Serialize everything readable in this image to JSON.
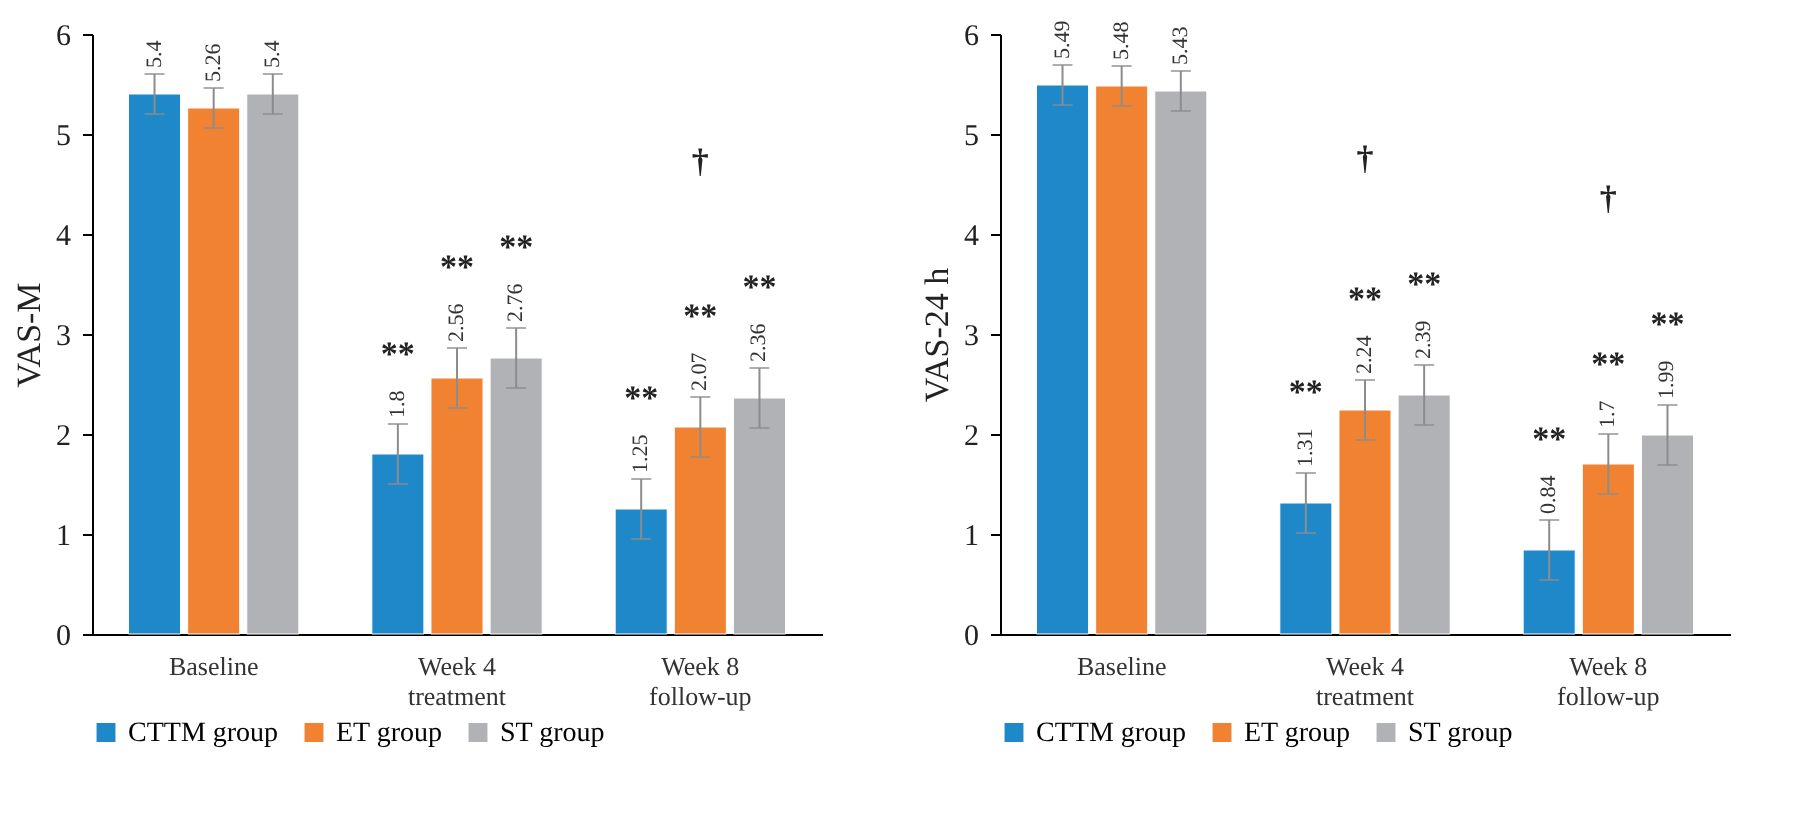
{
  "chart_data": [
    {
      "type": "bar",
      "ylabel": "VAS-M",
      "categories": [
        "Baseline",
        "Week 4 treatment",
        "Week 8 follow-up"
      ],
      "ylim": [
        0,
        6
      ],
      "yticks": [
        0,
        1,
        2,
        3,
        4,
        5,
        6
      ],
      "legend": "bottom",
      "data_labels": true,
      "series": [
        {
          "name": "CTTM group",
          "color": "#1f88c9",
          "values": [
            5.4,
            1.8,
            1.25
          ],
          "errors": [
            0.2,
            0.3,
            0.3
          ]
        },
        {
          "name": "ET group",
          "color": "#f08231",
          "values": [
            5.26,
            2.56,
            2.07
          ],
          "errors": [
            0.2,
            0.3,
            0.3
          ]
        },
        {
          "name": "ST group",
          "color": "#b1b2b6",
          "values": [
            5.4,
            2.76,
            2.36
          ],
          "errors": [
            0.2,
            0.3,
            0.3
          ]
        }
      ],
      "annotations": [
        "**",
        "**",
        "**",
        "**",
        "**",
        "**",
        "†"
      ]
    },
    {
      "type": "bar",
      "ylabel": "VAS-24 h",
      "categories": [
        "Baseline",
        "Week 4 treatment",
        "Week 8 follow-up"
      ],
      "ylim": [
        0,
        6
      ],
      "yticks": [
        0,
        1,
        2,
        3,
        4,
        5,
        6
      ],
      "legend": "bottom",
      "data_labels": true,
      "series": [
        {
          "name": "CTTM group",
          "color": "#1f88c9",
          "values": [
            5.49,
            1.31,
            0.84
          ],
          "errors": [
            0.2,
            0.3,
            0.3
          ]
        },
        {
          "name": "ET group",
          "color": "#f08231",
          "values": [
            5.48,
            2.24,
            1.7
          ],
          "errors": [
            0.2,
            0.3,
            0.3
          ]
        },
        {
          "name": "ST group",
          "color": "#b1b2b6",
          "values": [
            5.43,
            2.39,
            1.99
          ],
          "errors": [
            0.2,
            0.3,
            0.3
          ]
        }
      ],
      "annotations": [
        "**",
        "**",
        "**",
        "**",
        "**",
        "**",
        "†",
        "†"
      ]
    }
  ]
}
